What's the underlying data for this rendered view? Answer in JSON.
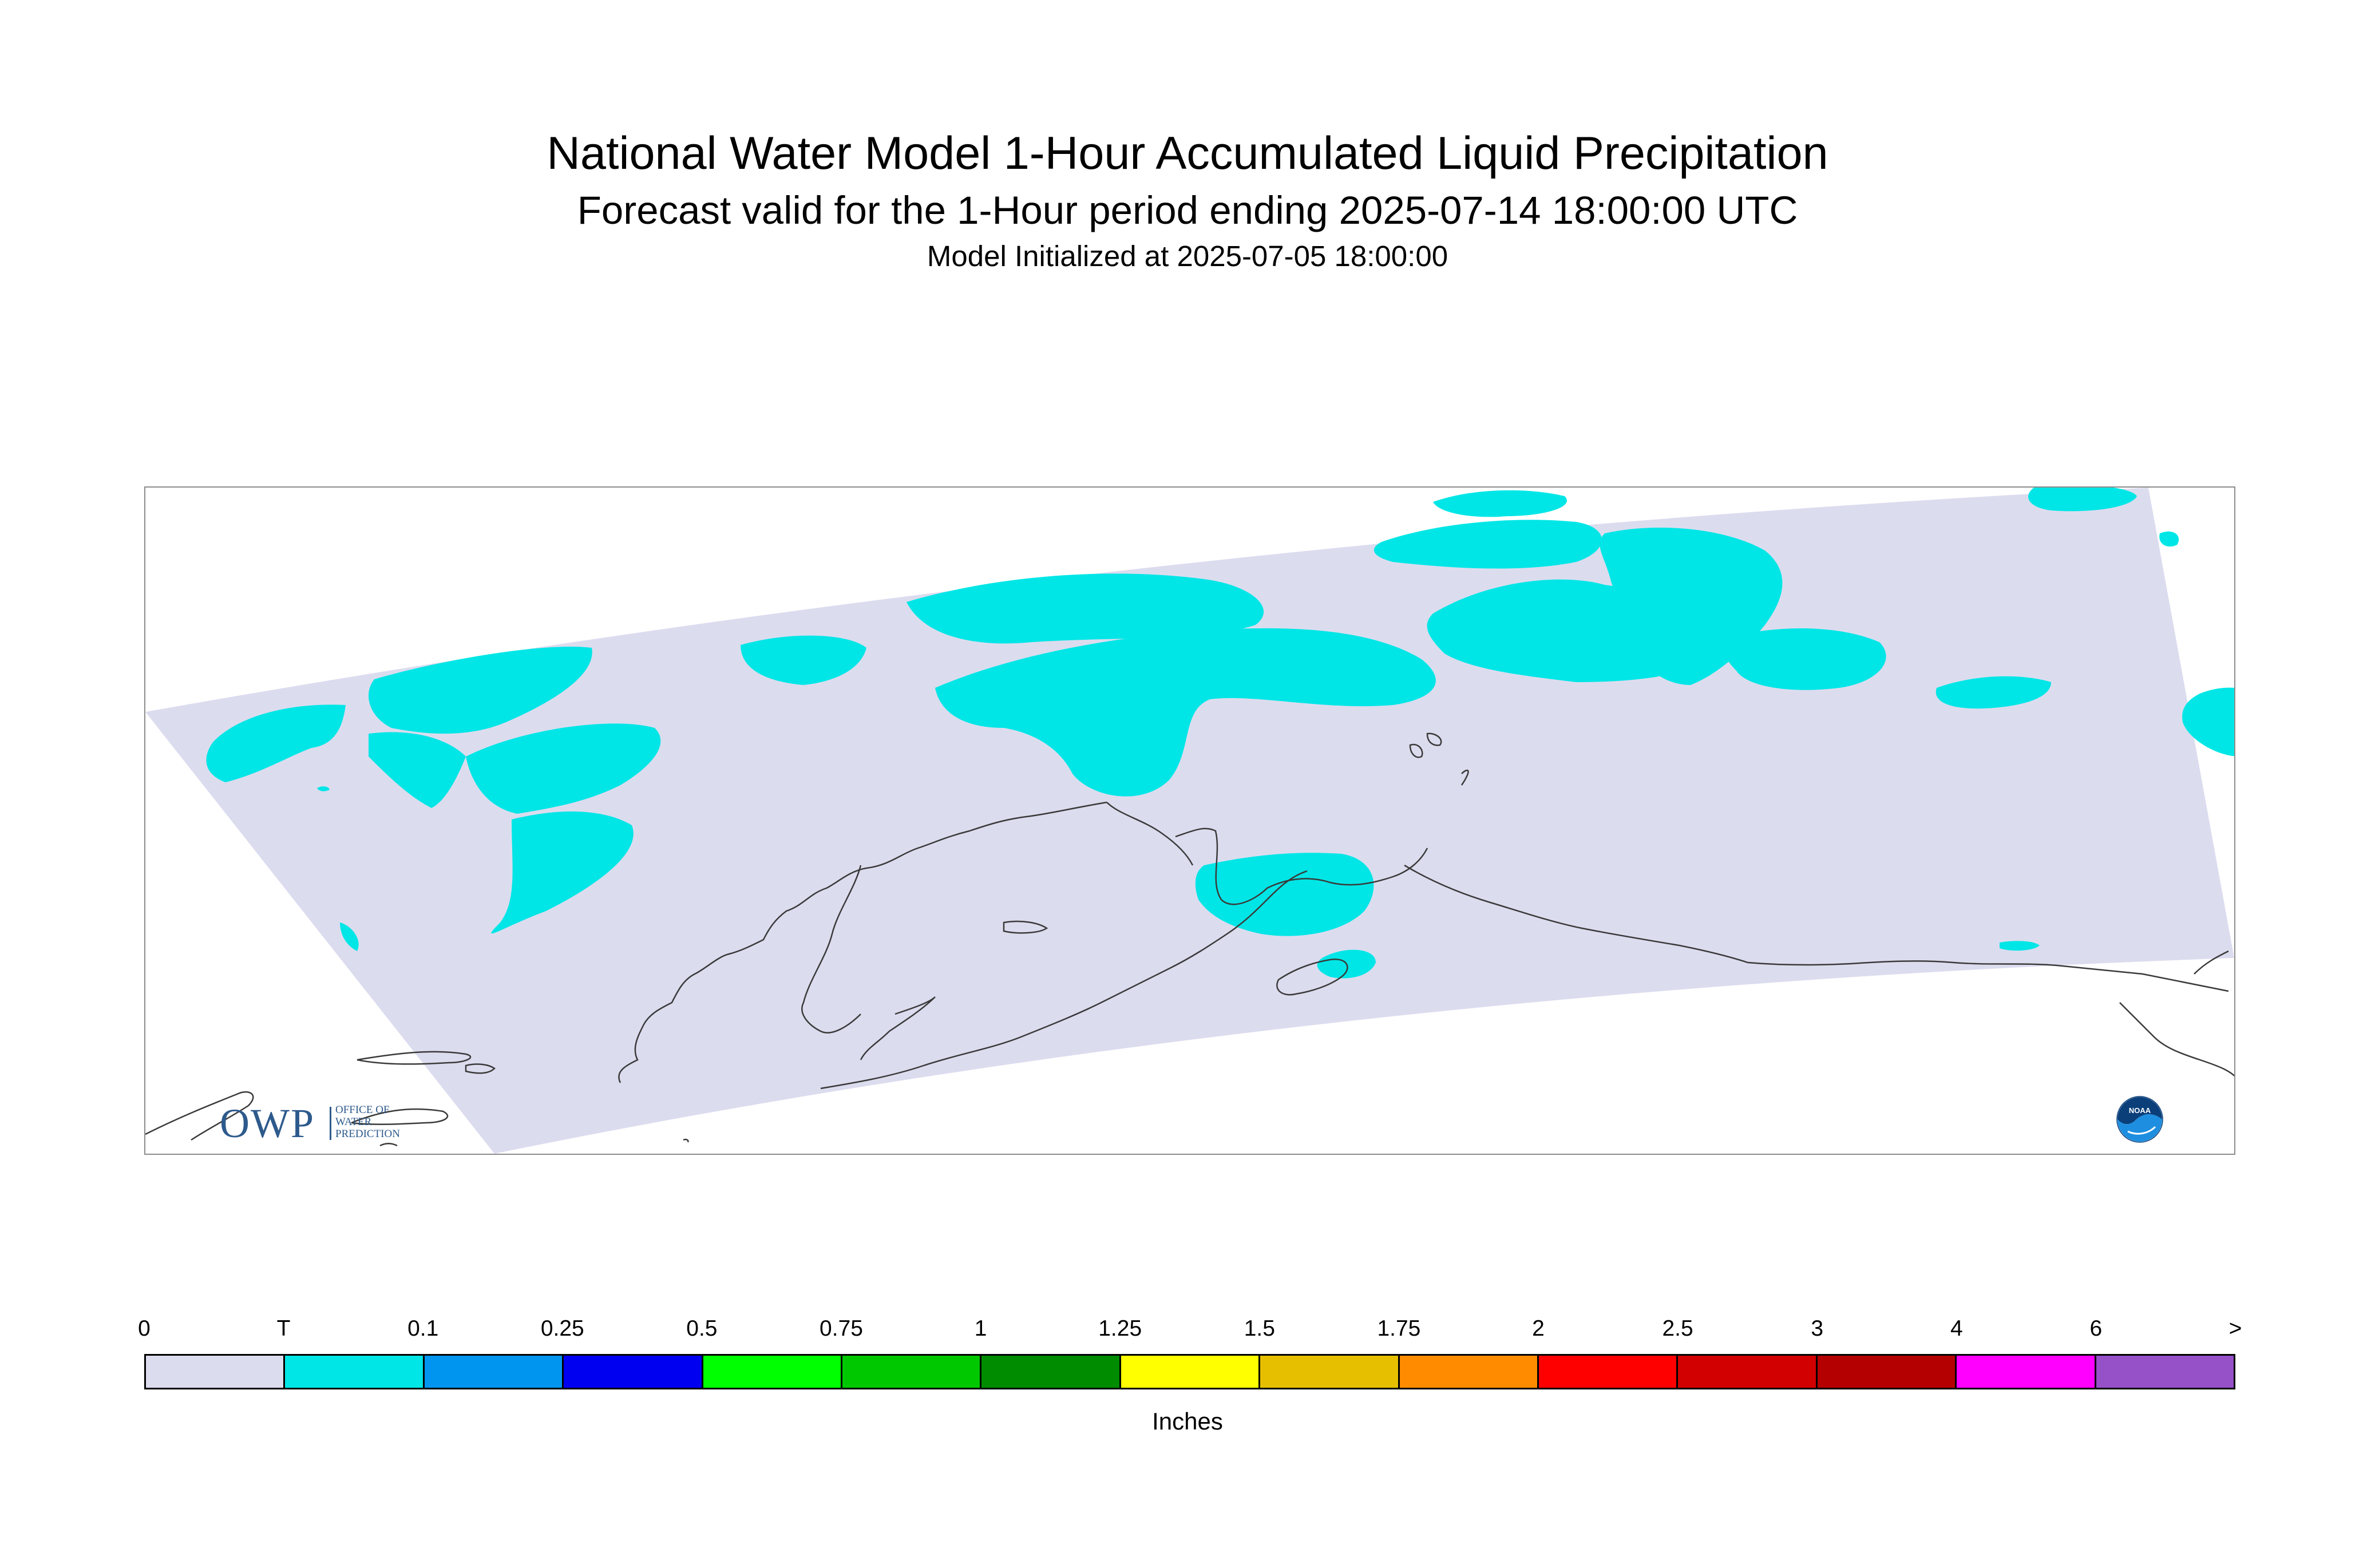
{
  "header": {
    "title": "National Water Model 1-Hour Accumulated Liquid Precipitation",
    "subtitle": "Forecast valid for the 1-Hour period ending 2025-07-14 18:00:00 UTC",
    "init_line": "Model Initialized at 2025-07-05 18:00:00"
  },
  "map": {
    "region": "Alaska",
    "domain_fill_color": "#dcdcef",
    "precip_fill_color": "#00e6e6",
    "coastline_color": "#3a3a3a"
  },
  "logos": {
    "owp": {
      "big": "OWP",
      "line1": "OFFICE OF",
      "line2": "WATER",
      "line3": "PREDICTION",
      "color": "#2d5a8c"
    },
    "noaa": {
      "text": "NOAA",
      "color": "#0a6fc2"
    }
  },
  "legend": {
    "units": "Inches",
    "tick_labels": [
      "0",
      "T",
      "0.1",
      "0.25",
      "0.5",
      "0.75",
      "1",
      "1.25",
      "1.5",
      "1.75",
      "2",
      "2.5",
      "3",
      "4",
      "6",
      ">"
    ],
    "colors": [
      "#dcdcef",
      "#00e6e6",
      "#0096f0",
      "#0000f0",
      "#00ff00",
      "#00c800",
      "#008c00",
      "#ffff00",
      "#e6c000",
      "#ff8c00",
      "#ff0000",
      "#d20000",
      "#b40000",
      "#ff00ff",
      "#9650c8"
    ]
  }
}
